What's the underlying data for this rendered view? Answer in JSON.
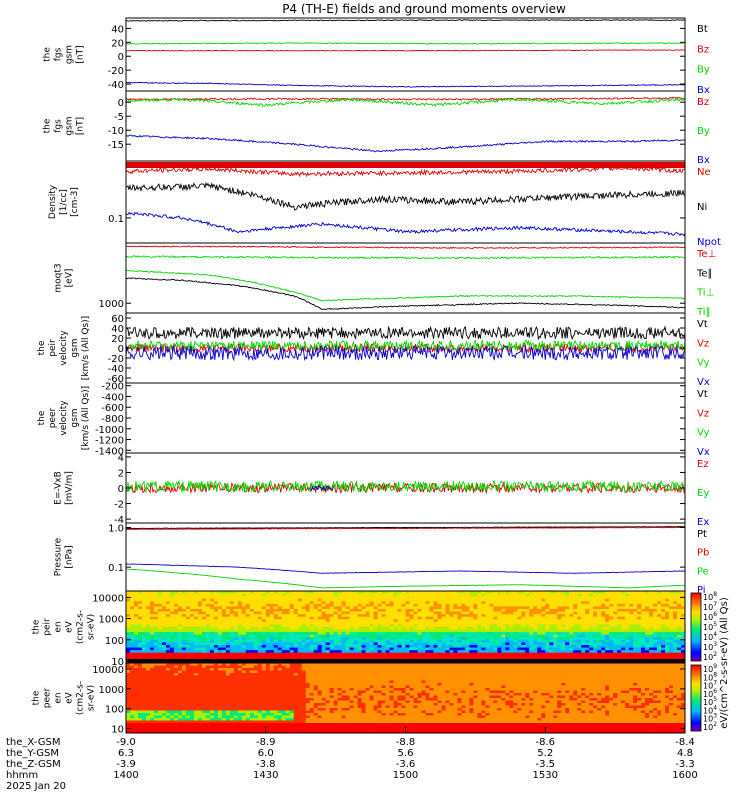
{
  "title": "P4 (TH-E) fields and ground moments overview",
  "colors": {
    "black": "#000000",
    "red": "#e00000",
    "green": "#00d800",
    "blue": "#0000d0"
  },
  "chart_data": [
    {
      "id": "fgs_gsm",
      "type": "line",
      "ylabel_lines": [
        "the",
        "fgs",
        "gsm",
        "[nT]"
      ],
      "ylim": [
        -50,
        55
      ],
      "yticks": [
        {
          "v": 40,
          "t": "40"
        },
        {
          "v": 20,
          "t": "20"
        },
        {
          "v": 0,
          "t": "0"
        },
        {
          "v": -20,
          "t": "-20"
        },
        {
          "v": -40,
          "t": "-40"
        }
      ],
      "series": [
        {
          "name": "Bt",
          "color": "black",
          "points": [
            [
              0,
              51
            ],
            [
              0.3,
              51.5
            ],
            [
              0.6,
              52
            ],
            [
              1,
              52
            ]
          ],
          "noise": 0.6
        },
        {
          "name": "Bz",
          "color": "red",
          "points": [
            [
              0,
              8
            ],
            [
              0.5,
              8
            ],
            [
              1,
              9
            ]
          ],
          "noise": 0.4
        },
        {
          "name": "By",
          "color": "green",
          "points": [
            [
              0,
              18
            ],
            [
              0.3,
              19
            ],
            [
              0.6,
              18
            ],
            [
              1,
              19
            ]
          ],
          "noise": 0.6
        },
        {
          "name": "Bx",
          "color": "blue",
          "points": [
            [
              0,
              -38
            ],
            [
              0.15,
              -39
            ],
            [
              0.3,
              -42
            ],
            [
              0.5,
              -44
            ],
            [
              0.7,
              -43
            ],
            [
              1,
              -41
            ]
          ],
          "noise": 0.6
        }
      ]
    },
    {
      "id": "fgs_gsm2",
      "type": "line",
      "ylabel_lines": [
        "the",
        "fgs",
        "gsm",
        "[nT]"
      ],
      "ylim": [
        -21,
        4
      ],
      "yticks": [
        {
          "v": 0,
          "t": "0"
        },
        {
          "v": -5,
          "t": "-5"
        },
        {
          "v": -10,
          "t": "-10"
        },
        {
          "v": -15,
          "t": "-15"
        }
      ],
      "series": [
        {
          "name": "Bz",
          "color": "red",
          "points": [
            [
              0,
              1
            ],
            [
              0.3,
              1.2
            ],
            [
              0.6,
              1
            ],
            [
              1,
              1.5
            ]
          ],
          "noise": 0.3
        },
        {
          "name": "By",
          "color": "green",
          "points": [
            [
              0,
              0.5
            ],
            [
              0.1,
              1
            ],
            [
              0.25,
              -1
            ],
            [
              0.4,
              1
            ],
            [
              0.55,
              -1
            ],
            [
              0.7,
              1
            ],
            [
              0.85,
              -0.5
            ],
            [
              1,
              1
            ]
          ],
          "noise": 0.5
        },
        {
          "name": "Bx",
          "color": "blue",
          "points": [
            [
              0,
              -12
            ],
            [
              0.15,
              -13
            ],
            [
              0.3,
              -15
            ],
            [
              0.45,
              -17.5
            ],
            [
              0.6,
              -16
            ],
            [
              0.75,
              -14
            ],
            [
              0.9,
              -14
            ],
            [
              1,
              -13.5
            ]
          ],
          "noise": 0.3
        }
      ]
    },
    {
      "id": "density",
      "type": "line",
      "log": true,
      "ylabel_lines": [
        "Density",
        "[1/cc]",
        "[cm-3]"
      ],
      "ylim": [
        0.04,
        0.8
      ],
      "yticks": [
        {
          "v": 0.1,
          "t": "0.1"
        }
      ],
      "top_bar": "red",
      "series": [
        {
          "name": "Ne",
          "color": "red",
          "points": [
            [
              0,
              0.55
            ],
            [
              0.15,
              0.6
            ],
            [
              0.3,
              0.5
            ],
            [
              0.5,
              0.52
            ],
            [
              0.7,
              0.55
            ],
            [
              0.9,
              0.62
            ],
            [
              1,
              0.55
            ]
          ],
          "noise": 0.08
        },
        {
          "name": "Ni",
          "color": "black",
          "points": [
            [
              0,
              0.3
            ],
            [
              0.15,
              0.32
            ],
            [
              0.3,
              0.15
            ],
            [
              0.45,
              0.2
            ],
            [
              0.6,
              0.18
            ],
            [
              0.8,
              0.22
            ],
            [
              1,
              0.25
            ]
          ],
          "noise": 0.12
        },
        {
          "name": "Npot",
          "color": "blue",
          "points": [
            [
              0,
              0.12
            ],
            [
              0.1,
              0.1
            ],
            [
              0.2,
              0.06
            ],
            [
              0.35,
              0.08
            ],
            [
              0.5,
              0.06
            ],
            [
              0.7,
              0.07
            ],
            [
              0.9,
              0.06
            ],
            [
              1,
              0.055
            ]
          ],
          "noise": 0.06
        }
      ]
    },
    {
      "id": "temperature",
      "type": "line",
      "log": true,
      "ylabel_lines": [
        "moqt3",
        "[eV]"
      ],
      "ylim": [
        700,
        9000
      ],
      "yticks": [
        {
          "v": 1000,
          "t": "1000"
        }
      ],
      "series": [
        {
          "name": "Te⊥",
          "color": "red",
          "points": [
            [
              0,
              8000
            ],
            [
              0.3,
              7800
            ],
            [
              0.6,
              7500
            ],
            [
              1,
              7700
            ]
          ],
          "noise": 0.02
        },
        {
          "name": "Te∥",
          "color": "black",
          "points": [
            [
              0,
              2500
            ],
            [
              0.1,
              2300
            ],
            [
              0.2,
              1900
            ],
            [
              0.3,
              1300
            ],
            [
              0.35,
              800
            ],
            [
              0.5,
              900
            ],
            [
              0.7,
              1000
            ],
            [
              0.9,
              920
            ],
            [
              1,
              850
            ]
          ],
          "noise": 0.02
        },
        {
          "name": "Ti⊥",
          "color": "green",
          "points": [
            [
              0,
              5500
            ],
            [
              0.3,
              5300
            ],
            [
              0.6,
              5200
            ],
            [
              1,
              5400
            ]
          ],
          "noise": 0.03
        },
        {
          "name": "Ti∥",
          "color": "green",
          "points": [
            [
              0,
              3300
            ],
            [
              0.15,
              2800
            ],
            [
              0.3,
              1500
            ],
            [
              0.35,
              1100
            ],
            [
              0.6,
              1300
            ],
            [
              0.8,
              1300
            ],
            [
              1,
              1200
            ]
          ],
          "noise": 0.02
        }
      ]
    },
    {
      "id": "peir_velocity",
      "type": "line",
      "ylabel_lines": [
        "the",
        "peir",
        "velocity",
        "gsm",
        "[km/s (All Qs)]"
      ],
      "ylim": [
        -70,
        70
      ],
      "yticks": [
        {
          "v": 60,
          "t": "60"
        },
        {
          "v": 40,
          "t": "40"
        },
        {
          "v": 20,
          "t": "20"
        },
        {
          "v": 0,
          "t": "0"
        },
        {
          "v": -20,
          "t": "-20"
        },
        {
          "v": -40,
          "t": "-40"
        },
        {
          "v": -60,
          "t": "-60"
        }
      ],
      "series": [
        {
          "name": "Vt",
          "color": "black",
          "points": [
            [
              0,
              30
            ],
            [
              1,
              30
            ]
          ],
          "noise": 12
        },
        {
          "name": "Vz",
          "color": "red",
          "points": [
            [
              0,
              0
            ],
            [
              1,
              0
            ]
          ],
          "noise": 8
        },
        {
          "name": "Vy",
          "color": "green",
          "points": [
            [
              0,
              5
            ],
            [
              1,
              5
            ]
          ],
          "noise": 10
        },
        {
          "name": "Vx",
          "color": "blue",
          "points": [
            [
              0,
              -10
            ],
            [
              1,
              -10
            ]
          ],
          "noise": 14
        }
      ]
    },
    {
      "id": "peer_velocity",
      "type": "line",
      "ylabel_lines": [
        "the",
        "peer",
        "velocity",
        "gsm",
        "[km/s (All Qs)]"
      ],
      "ylim": [
        -1450,
        -150
      ],
      "yticks": [
        {
          "v": -200,
          "t": "-200"
        },
        {
          "v": -400,
          "t": "-400"
        },
        {
          "v": -600,
          "t": "-600"
        },
        {
          "v": -800,
          "t": "-800"
        },
        {
          "v": -1000,
          "t": "-1000"
        },
        {
          "v": -1200,
          "t": "-1200"
        },
        {
          "v": -1400,
          "t": "-1400"
        }
      ],
      "series": [
        {
          "name": "Vt",
          "color": "black",
          "points": [],
          "noise": 0
        },
        {
          "name": "Vz",
          "color": "red",
          "points": [],
          "noise": 0
        },
        {
          "name": "Vy",
          "color": "green",
          "points": [],
          "noise": 0
        },
        {
          "name": "Vx",
          "color": "blue",
          "points": [],
          "noise": 0
        }
      ]
    },
    {
      "id": "efield",
      "type": "line",
      "ylabel_lines": [
        "E=-VxB",
        "[mV/m]"
      ],
      "ylim": [
        -4.5,
        4.5
      ],
      "yticks": [
        {
          "v": 4,
          "t": "4"
        },
        {
          "v": 2,
          "t": "2"
        },
        {
          "v": 0,
          "t": "0"
        },
        {
          "v": -2,
          "t": "-2"
        },
        {
          "v": -4,
          "t": "-4"
        }
      ],
      "series": [
        {
          "name": "Ez",
          "color": "red",
          "points": [
            [
              0,
              0
            ],
            [
              1,
              0
            ]
          ],
          "noise": 0.6
        },
        {
          "name": "Ey",
          "color": "green",
          "points": [
            [
              0,
              0.2
            ],
            [
              1,
              0.2
            ]
          ],
          "noise": 0.7
        },
        {
          "name": "Ex",
          "color": "blue",
          "points": [
            [
              0.33,
              0
            ],
            [
              0.37,
              0
            ]
          ],
          "noise": 0.3
        }
      ]
    },
    {
      "id": "pressure",
      "type": "line",
      "log": true,
      "ylabel_lines": [
        "Pressure",
        "[nPa]"
      ],
      "ylim": [
        0.025,
        1.3
      ],
      "yticks": [
        {
          "v": 1.0,
          "t": "1.0"
        },
        {
          "v": 0.1,
          "t": "0.1"
        }
      ],
      "series": [
        {
          "name": "Pt",
          "color": "black",
          "points": [
            [
              0,
              0.95
            ],
            [
              0.5,
              1.0
            ],
            [
              1,
              1.05
            ]
          ],
          "noise": 0.01
        },
        {
          "name": "Pb",
          "color": "red",
          "points": [
            [
              0,
              0.9
            ],
            [
              0.5,
              0.95
            ],
            [
              1,
              1.0
            ]
          ],
          "noise": 0.01
        },
        {
          "name": "Pe",
          "color": "green",
          "points": [
            [
              0,
              0.09
            ],
            [
              0.1,
              0.07
            ],
            [
              0.2,
              0.05
            ],
            [
              0.35,
              0.03
            ],
            [
              0.5,
              0.033
            ],
            [
              0.7,
              0.036
            ],
            [
              0.9,
              0.03
            ],
            [
              1,
              0.035
            ]
          ],
          "noise": 0.01
        },
        {
          "name": "Pi",
          "color": "blue",
          "points": [
            [
              0,
              0.12
            ],
            [
              0.2,
              0.1
            ],
            [
              0.35,
              0.07
            ],
            [
              0.6,
              0.08
            ],
            [
              0.8,
              0.07
            ],
            [
              1,
              0.08
            ]
          ],
          "noise": 0.01
        }
      ]
    },
    {
      "id": "peir_eflux",
      "type": "heatmap",
      "ylabel_lines": [
        "the",
        "peir",
        "en",
        "eV",
        "(cm2-s-",
        "sr-eV)"
      ],
      "ylim": [
        8,
        20000
      ],
      "yticks": [
        {
          "v": 10000,
          "t": "10000"
        },
        {
          "v": 1000,
          "t": "1000"
        },
        {
          "v": 100,
          "t": "100"
        },
        {
          "v": 10,
          "t": "10"
        }
      ],
      "colorbar_ticks": [
        "10^8",
        "10^7",
        "10^6",
        "10^5",
        "10^4",
        "10^3",
        "10^2"
      ],
      "colorbar_label": "eV/(cm^2-s-sr-eV) (All Qs)"
    },
    {
      "id": "peer_eflux",
      "type": "heatmap",
      "ylabel_lines": [
        "the",
        "peer",
        "en",
        "eV",
        "(cm2-s-",
        "sr-eV)"
      ],
      "ylim": [
        6,
        20000
      ],
      "yticks": [
        {
          "v": 10000,
          "t": "10000"
        },
        {
          "v": 1000,
          "t": "1000"
        },
        {
          "v": 100,
          "t": "100"
        },
        {
          "v": 10,
          "t": "10"
        }
      ],
      "colorbar_ticks": [
        "10^9",
        "10^8",
        "10^7",
        "10^6",
        "10^5",
        "10^4",
        "10^3",
        "10^2"
      ],
      "colorbar_label": "eV/(cm^2-s-sr-eV) (All Qs)"
    }
  ],
  "xaxis": {
    "labels": [
      "the_X-GSM",
      "the_Y-GSM",
      "the_Z-GSM",
      "hhmm",
      "2025 Jan 20"
    ],
    "ticks": [
      {
        "x": -9.0,
        "y": 6.3,
        "z": -3.9,
        "t": "1400"
      },
      {
        "x": -8.9,
        "y": 6.0,
        "z": -3.8,
        "t": "1430"
      },
      {
        "x": -8.8,
        "y": 5.6,
        "z": -3.6,
        "t": "1500"
      },
      {
        "x": -8.6,
        "y": 5.2,
        "z": -3.5,
        "t": "1530"
      },
      {
        "x": -8.4,
        "y": 4.8,
        "z": -3.3,
        "t": "1600"
      }
    ]
  },
  "panel_legends": [
    [
      "Bt",
      "Bz",
      "By",
      "Bx"
    ],
    [
      "Bz",
      "By",
      "Bx"
    ],
    [
      "Ne",
      "Ni",
      "Npot"
    ],
    [
      "Te⊥",
      "Te∥",
      "Ti⊥",
      "Ti∥"
    ],
    [
      "Vt",
      "Vz",
      "Vy",
      "Vx"
    ],
    [
      "Vt",
      "Vz",
      "Vy",
      "Vx"
    ],
    [
      "Ez",
      "Ey",
      "Ex"
    ],
    [
      "Pt",
      "Pb",
      "Pe",
      "Pi"
    ]
  ]
}
